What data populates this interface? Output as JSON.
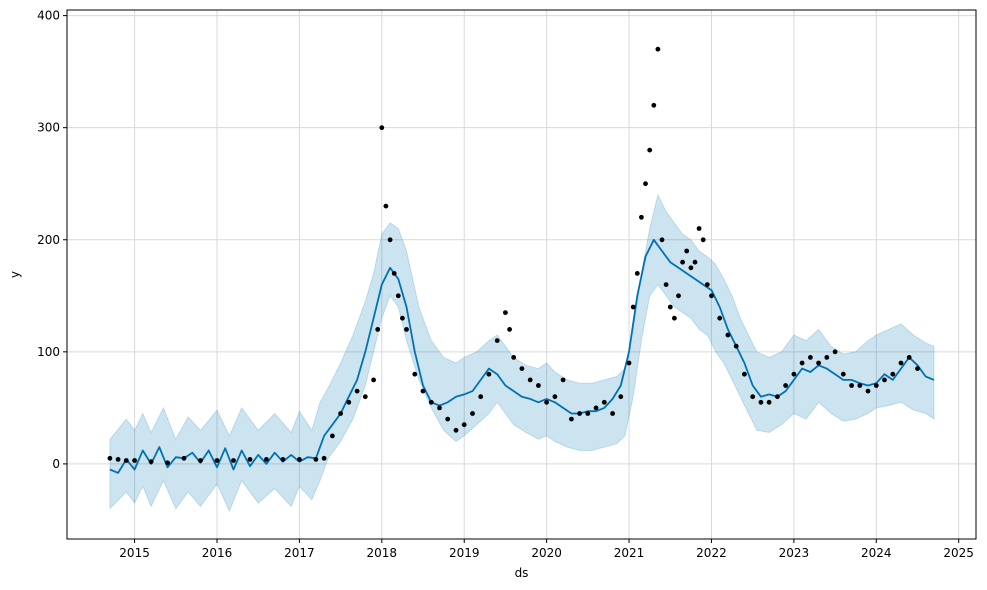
{
  "chart_data": {
    "type": "line",
    "title": "",
    "xlabel": "ds",
    "ylabel": "y",
    "xlim": [
      2014.18,
      2025.21
    ],
    "ylim": [
      -67,
      405
    ],
    "x_ticks": [
      2015,
      2016,
      2017,
      2018,
      2019,
      2020,
      2021,
      2022,
      2023,
      2024,
      2025
    ],
    "x_tick_labels": [
      "2015",
      "2016",
      "2017",
      "2018",
      "2019",
      "2020",
      "2021",
      "2022",
      "2023",
      "2024",
      "2025"
    ],
    "y_ticks": [
      0,
      100,
      200,
      300,
      400
    ],
    "y_tick_labels": [
      "0",
      "100",
      "200",
      "300",
      "400"
    ],
    "grid": true,
    "colors": {
      "forecast": "#0072B2",
      "interval": "#0072B2",
      "observed": "#000000",
      "grid": "#d9d9d9"
    },
    "series": [
      {
        "type": "band",
        "x": [
          2014.7,
          2014.9,
          2015.0,
          2015.1,
          2015.2,
          2015.35,
          2015.5,
          2015.65,
          2015.8,
          2016.0,
          2016.15,
          2016.3,
          2016.5,
          2016.7,
          2016.9,
          2017.0,
          2017.15,
          2017.25,
          2017.35,
          2017.5,
          2017.65,
          2017.8,
          2017.9,
          2018.0,
          2018.1,
          2018.2,
          2018.3,
          2018.45,
          2018.6,
          2018.75,
          2018.9,
          2019.0,
          2019.15,
          2019.3,
          2019.4,
          2019.5,
          2019.6,
          2019.75,
          2019.9,
          2020.0,
          2020.1,
          2020.25,
          2020.4,
          2020.55,
          2020.7,
          2020.85,
          2020.95,
          2021.05,
          2021.15,
          2021.25,
          2021.35,
          2021.45,
          2021.55,
          2021.65,
          2021.75,
          2021.85,
          2021.95,
          2022.05,
          2022.15,
          2022.25,
          2022.35,
          2022.45,
          2022.55,
          2022.7,
          2022.85,
          2023.0,
          2023.15,
          2023.3,
          2023.45,
          2023.6,
          2023.75,
          2023.9,
          2024.0,
          2024.15,
          2024.3,
          2024.45,
          2024.6,
          2024.7
        ],
        "upper": [
          22,
          40,
          30,
          45,
          28,
          50,
          22,
          42,
          30,
          48,
          25,
          50,
          30,
          45,
          28,
          47,
          30,
          55,
          68,
          90,
          115,
          145,
          170,
          205,
          215,
          210,
          190,
          140,
          110,
          95,
          90,
          95,
          100,
          110,
          115,
          105,
          95,
          88,
          85,
          90,
          82,
          75,
          72,
          72,
          75,
          78,
          85,
          120,
          170,
          210,
          240,
          225,
          215,
          205,
          200,
          190,
          185,
          178,
          165,
          150,
          130,
          115,
          100,
          95,
          100,
          115,
          110,
          120,
          105,
          98,
          100,
          110,
          115,
          120,
          125,
          115,
          108,
          105
        ],
        "lower": [
          -40,
          -25,
          -35,
          -20,
          -38,
          -15,
          -40,
          -25,
          -38,
          -18,
          -42,
          -15,
          -35,
          -22,
          -38,
          -20,
          -32,
          -15,
          5,
          20,
          40,
          70,
          100,
          130,
          150,
          140,
          110,
          75,
          50,
          30,
          20,
          25,
          35,
          45,
          55,
          45,
          35,
          28,
          22,
          25,
          20,
          15,
          12,
          12,
          15,
          18,
          25,
          60,
          110,
          150,
          160,
          150,
          140,
          135,
          130,
          120,
          115,
          100,
          90,
          75,
          60,
          45,
          30,
          28,
          35,
          45,
          40,
          55,
          45,
          38,
          40,
          45,
          50,
          52,
          55,
          48,
          45,
          40
        ],
        "name": ""
      },
      {
        "type": "line",
        "x": [
          2014.7,
          2014.8,
          2014.9,
          2015.0,
          2015.1,
          2015.2,
          2015.3,
          2015.4,
          2015.5,
          2015.6,
          2015.7,
          2015.8,
          2015.9,
          2016.0,
          2016.1,
          2016.2,
          2016.3,
          2016.4,
          2016.5,
          2016.6,
          2016.7,
          2016.8,
          2016.9,
          2017.0,
          2017.1,
          2017.2,
          2017.3,
          2017.4,
          2017.5,
          2017.6,
          2017.7,
          2017.8,
          2017.9,
          2018.0,
          2018.1,
          2018.2,
          2018.3,
          2018.4,
          2018.5,
          2018.6,
          2018.7,
          2018.8,
          2018.9,
          2019.0,
          2019.1,
          2019.2,
          2019.3,
          2019.4,
          2019.5,
          2019.6,
          2019.7,
          2019.8,
          2019.9,
          2020.0,
          2020.1,
          2020.2,
          2020.3,
          2020.4,
          2020.5,
          2020.6,
          2020.7,
          2020.8,
          2020.9,
          2021.0,
          2021.1,
          2021.2,
          2021.3,
          2021.4,
          2021.5,
          2021.6,
          2021.7,
          2021.8,
          2021.9,
          2022.0,
          2022.1,
          2022.2,
          2022.3,
          2022.4,
          2022.5,
          2022.6,
          2022.7,
          2022.8,
          2022.9,
          2023.0,
          2023.1,
          2023.2,
          2023.3,
          2023.4,
          2023.5,
          2023.6,
          2023.7,
          2023.8,
          2023.9,
          2024.0,
          2024.1,
          2024.2,
          2024.3,
          2024.4,
          2024.5,
          2024.6,
          2024.7
        ],
        "y": [
          -5,
          -8,
          4,
          -5,
          12,
          0,
          15,
          -3,
          6,
          5,
          10,
          1,
          12,
          -3,
          14,
          -5,
          12,
          -2,
          8,
          0,
          10,
          2,
          8,
          2,
          6,
          5,
          25,
          35,
          45,
          60,
          75,
          100,
          130,
          160,
          175,
          165,
          140,
          100,
          70,
          55,
          52,
          55,
          60,
          62,
          65,
          75,
          85,
          80,
          70,
          65,
          60,
          58,
          55,
          58,
          55,
          50,
          45,
          45,
          47,
          47,
          50,
          58,
          70,
          100,
          150,
          185,
          200,
          190,
          180,
          175,
          170,
          165,
          160,
          155,
          140,
          120,
          105,
          90,
          70,
          60,
          62,
          60,
          65,
          75,
          85,
          82,
          88,
          85,
          80,
          75,
          75,
          72,
          70,
          72,
          80,
          75,
          85,
          95,
          88,
          78,
          75
        ],
        "name": ""
      },
      {
        "type": "scatter",
        "x": [
          2014.7,
          2014.8,
          2014.9,
          2015.0,
          2015.2,
          2015.4,
          2015.6,
          2015.8,
          2016.0,
          2016.2,
          2016.4,
          2016.6,
          2016.8,
          2017.0,
          2017.2,
          2017.3,
          2017.4,
          2017.5,
          2017.6,
          2017.7,
          2017.8,
          2017.9,
          2017.95,
          2018.0,
          2018.05,
          2018.1,
          2018.15,
          2018.2,
          2018.25,
          2018.3,
          2018.4,
          2018.5,
          2018.6,
          2018.7,
          2018.8,
          2018.9,
          2019.0,
          2019.1,
          2019.2,
          2019.3,
          2019.4,
          2019.5,
          2019.55,
          2019.6,
          2019.7,
          2019.8,
          2019.9,
          2020.0,
          2020.1,
          2020.2,
          2020.3,
          2020.4,
          2020.5,
          2020.6,
          2020.7,
          2020.8,
          2020.9,
          2021.0,
          2021.05,
          2021.1,
          2021.15,
          2021.2,
          2021.25,
          2021.3,
          2021.35,
          2021.4,
          2021.45,
          2021.5,
          2021.55,
          2021.6,
          2021.65,
          2021.7,
          2021.75,
          2021.8,
          2021.85,
          2021.9,
          2021.95,
          2022.0,
          2022.1,
          2022.2,
          2022.3,
          2022.4,
          2022.5,
          2022.6,
          2022.7,
          2022.8,
          2022.9,
          2023.0,
          2023.1,
          2023.2,
          2023.3,
          2023.4,
          2023.5,
          2023.6,
          2023.7,
          2023.8,
          2023.9,
          2024.0,
          2024.1,
          2024.2,
          2024.3,
          2024.4,
          2024.5
        ],
        "y": [
          5,
          4,
          3,
          3,
          2,
          1,
          5,
          3,
          3,
          3,
          4,
          4,
          4,
          4,
          4,
          5,
          25,
          45,
          55,
          65,
          60,
          75,
          120,
          300,
          230,
          200,
          170,
          150,
          130,
          120,
          80,
          65,
          55,
          50,
          40,
          30,
          35,
          45,
          60,
          80,
          110,
          135,
          120,
          95,
          85,
          75,
          70,
          55,
          60,
          75,
          40,
          45,
          45,
          50,
          55,
          45,
          60,
          90,
          140,
          170,
          220,
          250,
          280,
          320,
          370,
          200,
          160,
          140,
          130,
          150,
          180,
          190,
          175,
          180,
          210,
          200,
          160,
          150,
          130,
          115,
          105,
          80,
          60,
          55,
          55,
          60,
          70,
          80,
          90,
          95,
          90,
          95,
          100,
          80,
          70,
          70,
          65,
          70,
          75,
          80,
          90,
          95,
          85
        ],
        "name": ""
      }
    ]
  }
}
